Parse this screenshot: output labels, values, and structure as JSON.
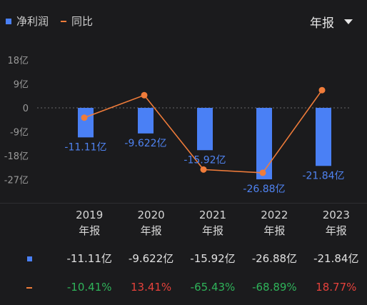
{
  "legend": {
    "series1": "净利润",
    "series2": "同比"
  },
  "period_selector": {
    "label": "年报"
  },
  "colors": {
    "bar": "#4a80f5",
    "line": "#f07c3a",
    "positive": "#e5413b",
    "negative": "#2fb35a"
  },
  "chart_data": {
    "type": "bar",
    "categories": [
      "2019",
      "2020",
      "2021",
      "2022",
      "2023"
    ],
    "yticks": [
      "18亿",
      "9亿",
      "0",
      "-9亿",
      "-18亿",
      "-27亿"
    ],
    "ylim": [
      -27,
      18
    ],
    "series": [
      {
        "name": "净利润",
        "type": "bar",
        "unit": "亿",
        "values": [
          -11.11,
          -9.622,
          -15.92,
          -26.88,
          -21.84
        ],
        "labels": [
          "-11.11亿",
          "-9.622亿",
          "-15.92亿",
          "-26.88亿",
          "-21.84亿"
        ]
      },
      {
        "name": "同比",
        "type": "line",
        "unit": "%",
        "values": [
          -10.41,
          13.41,
          -65.43,
          -68.89,
          18.77
        ]
      }
    ]
  },
  "table": {
    "headers": [
      {
        "year": "2019",
        "period": "年报"
      },
      {
        "year": "2020",
        "period": "年报"
      },
      {
        "year": "2021",
        "period": "年报"
      },
      {
        "year": "2022",
        "period": "年报"
      },
      {
        "year": "2023",
        "period": "年报"
      }
    ],
    "net_profit": [
      "-11.11亿",
      "-9.622亿",
      "-15.92亿",
      "-26.88亿",
      "-21.84亿"
    ],
    "yoy": [
      "-10.41%",
      "13.41%",
      "-65.43%",
      "-68.89%",
      "18.77%"
    ]
  }
}
